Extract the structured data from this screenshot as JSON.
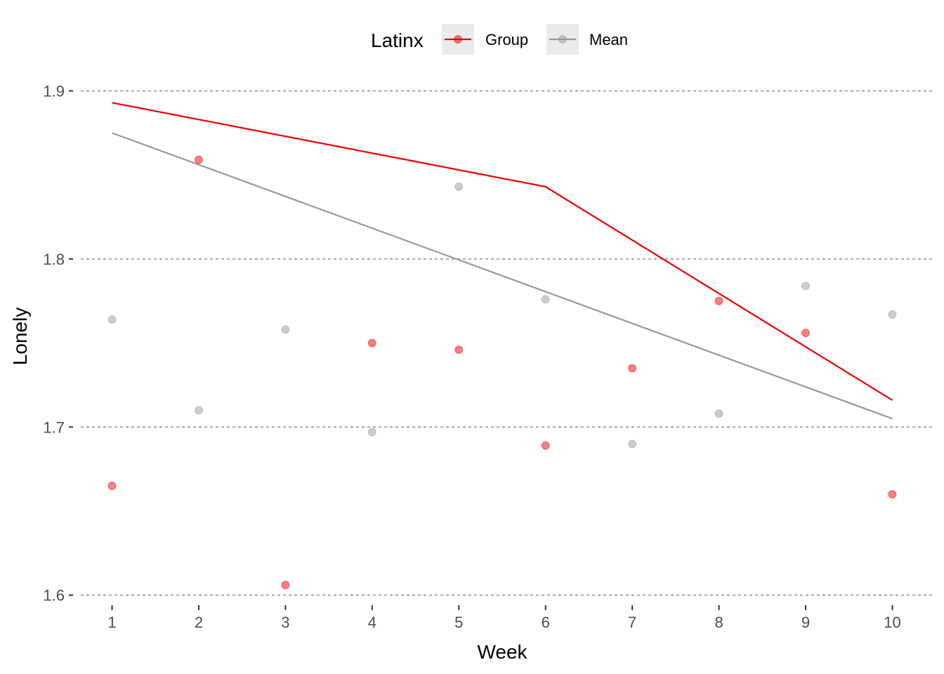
{
  "chart_data": {
    "type": "line",
    "xlabel": "Week",
    "ylabel": "Lonely",
    "x": [
      1,
      2,
      3,
      4,
      5,
      6,
      7,
      8,
      9,
      10
    ],
    "xlim": [
      0.55,
      10.45
    ],
    "ylim": [
      1.594,
      1.914
    ],
    "yticks": [
      1.6,
      1.7,
      1.8,
      1.9
    ],
    "ytick_labels": [
      "1.6",
      "1.7",
      "1.8",
      "1.9"
    ],
    "grid": "horizontal-dotted",
    "legend": {
      "title": "Latinx",
      "placement": "top-center",
      "entries": [
        "Group",
        "Mean"
      ]
    },
    "series": [
      {
        "name": "Group",
        "color": "#ee0000",
        "points": [
          1.665,
          1.859,
          1.606,
          1.75,
          1.746,
          1.689,
          1.735,
          1.775,
          1.756,
          1.66
        ],
        "line": [
          [
            1,
            1.893
          ],
          [
            6,
            1.843
          ],
          [
            10,
            1.716
          ]
        ]
      },
      {
        "name": "Mean",
        "color": "#999999",
        "points": [
          1.764,
          1.71,
          1.758,
          1.697,
          1.843,
          1.776,
          1.69,
          1.708,
          1.784,
          1.767
        ],
        "line": [
          [
            1,
            1.875
          ],
          [
            10,
            1.705
          ]
        ]
      }
    ]
  }
}
